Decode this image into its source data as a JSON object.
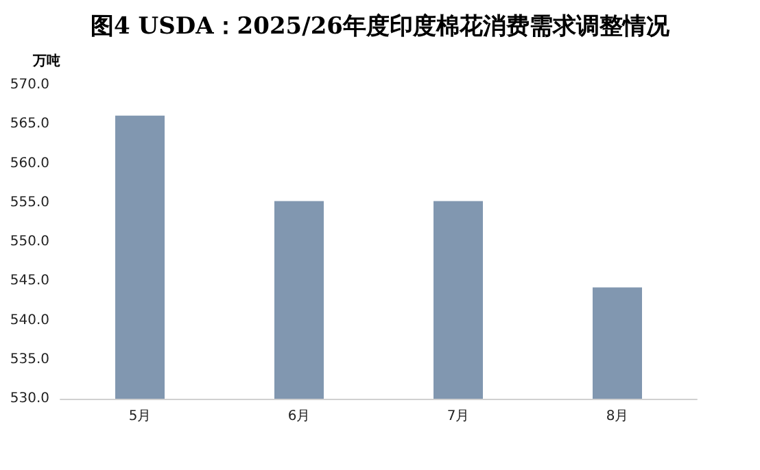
{
  "chart_data": {
    "type": "bar",
    "title": "图4 USDA：2025/26年度印度棉花消费需求调整情况",
    "ylabel": "万吨",
    "categories": [
      "5月",
      "6月",
      "7月",
      "8月"
    ],
    "values": [
      566.1,
      555.2,
      555.2,
      544.2
    ],
    "color": "#8197b0",
    "ylim": [
      530,
      570
    ],
    "yticks": [
      {
        "value": 530,
        "label": "530.0"
      },
      {
        "value": 535,
        "label": "535.0"
      },
      {
        "value": 540,
        "label": "540.0"
      },
      {
        "value": 545,
        "label": "545.0"
      },
      {
        "value": 550,
        "label": "550.0"
      },
      {
        "value": 555,
        "label": "555.0"
      },
      {
        "value": 560,
        "label": "560.0"
      },
      {
        "value": 565,
        "label": "565.0"
      },
      {
        "value": 570,
        "label": "570.0"
      }
    ],
    "grid": false
  }
}
